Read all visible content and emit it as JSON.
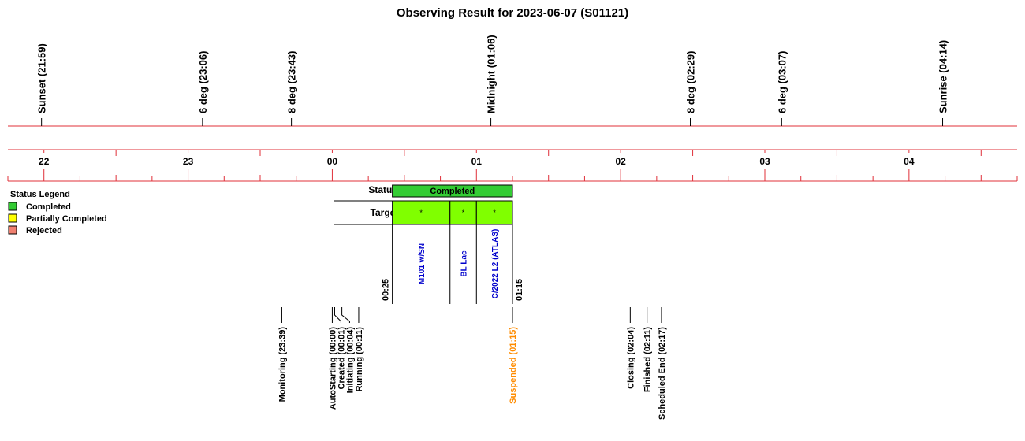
{
  "title": "Observing Result for 2023-06-07 (S01121)",
  "colors": {
    "timeline": "#e0303a",
    "completed": "#33cc33",
    "target_fill": "#80ff00",
    "partial": "#ffff00",
    "rejected": "#f08070",
    "target_text": "#0000cc",
    "suspended": "#ff8c00",
    "text": "#000000"
  },
  "legend": {
    "title": "Status Legend",
    "items": [
      {
        "label": "Completed",
        "color": "#33cc33"
      },
      {
        "label": "Partially Completed",
        "color": "#ffff00"
      },
      {
        "label": "Rejected",
        "color": "#f08070"
      }
    ]
  },
  "row_labels": {
    "status": "Status",
    "targets": "Targets"
  },
  "chart_data": {
    "type": "timeline",
    "time_range": [
      "21:45",
      "04:45"
    ],
    "hour_labels": [
      "22",
      "23",
      "00",
      "01",
      "02",
      "03",
      "04"
    ],
    "sun_events": [
      {
        "label": "Sunset (21:59)",
        "time": "21:59"
      },
      {
        "label": "6 deg (23:06)",
        "time": "23:06"
      },
      {
        "label": "8 deg (23:43)",
        "time": "23:43"
      },
      {
        "label": "Midnight (01:06)",
        "time": "01:06"
      },
      {
        "label": "8 deg (02:29)",
        "time": "02:29"
      },
      {
        "label": "6 deg (03:07)",
        "time": "03:07"
      },
      {
        "label": "Sunrise (04:14)",
        "time": "04:14"
      }
    ],
    "status_bar": {
      "label": "Completed",
      "start": "00:25",
      "end": "01:15"
    },
    "block_start_label": "00:25",
    "block_end_label": "01:15",
    "targets": [
      {
        "name": "M101 w/SN",
        "start": "00:25",
        "end": "00:49",
        "marker": "*"
      },
      {
        "name": "BL Lac",
        "start": "00:49",
        "end": "01:00",
        "marker": "*"
      },
      {
        "name": "C/2022 L2 (ATLAS)",
        "start": "01:00",
        "end": "01:15",
        "marker": "*"
      }
    ],
    "events": [
      {
        "label": "Monitoring (23:39)",
        "time": "23:39",
        "highlight": false
      },
      {
        "label": "AutoStarting (00:00)",
        "time": "00:00",
        "highlight": false
      },
      {
        "label": "Created (00:01)",
        "time": "00:01",
        "highlight": false
      },
      {
        "label": "Initiating (00:04)",
        "time": "00:04",
        "highlight": false
      },
      {
        "label": "Running (00:11)",
        "time": "00:11",
        "highlight": false
      },
      {
        "label": "Suspended (01:15)",
        "time": "01:15",
        "highlight": true
      },
      {
        "label": "Closing (02:04)",
        "time": "02:04",
        "highlight": false
      },
      {
        "label": "Finished (02:11)",
        "time": "02:11",
        "highlight": false
      },
      {
        "label": "Scheduled End (02:17)",
        "time": "02:17",
        "highlight": false
      }
    ]
  }
}
